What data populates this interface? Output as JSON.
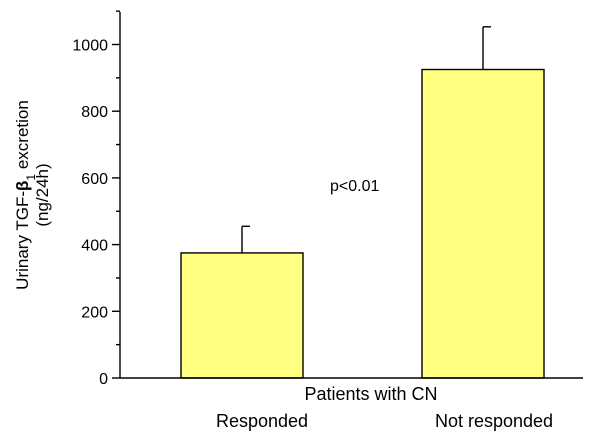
{
  "chart_data": {
    "type": "bar",
    "title": "",
    "xlabel": "Patients with CN",
    "ylabel": {
      "pre": "Urinary TGF-",
      "beta": "β",
      "sub": "1",
      "post": " excretion",
      "line2": "(ng/24h)"
    },
    "categories": [
      "Responded",
      "Not responded"
    ],
    "values": [
      375,
      925
    ],
    "errors": [
      80,
      128
    ],
    "ylim": [
      0,
      1100
    ],
    "yticks": [
      0,
      200,
      400,
      600,
      800,
      1000
    ],
    "yminor_ticks": [
      100,
      300,
      500,
      700,
      900,
      1100
    ],
    "grid": false,
    "bar_color": "#ffff80",
    "annotation": "p<0.01"
  }
}
